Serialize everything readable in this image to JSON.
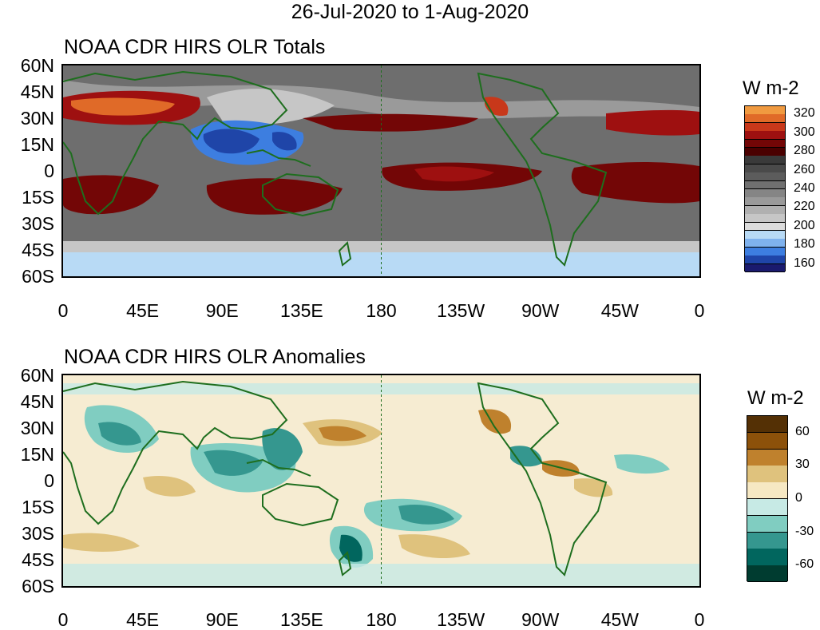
{
  "title": "26-Jul-2020 to 1-Aug-2020",
  "panels": [
    {
      "title": "NOAA CDR HIRS OLR Totals",
      "colorbar": {
        "title": "W m-2",
        "colors": [
          "#1a1a6e",
          "#1f45a8",
          "#3d7ee0",
          "#7fb2ee",
          "#b8daf5",
          "#dcdcdc",
          "#c6c6c6",
          "#b0b0b0",
          "#9a9a9a",
          "#858585",
          "#707070",
          "#5c5c5c",
          "#4a4a4a",
          "#3a3a3a",
          "#4a0000",
          "#730606",
          "#9e1010",
          "#c8381a",
          "#e06a28",
          "#f09a40"
        ],
        "labels": [
          "320",
          "300",
          "280",
          "260",
          "240",
          "220",
          "200",
          "180",
          "160"
        ]
      }
    },
    {
      "title": "NOAA CDR HIRS OLR Anomalies",
      "colorbar": {
        "title": "W m-2",
        "colors": [
          "#003c30",
          "#01665e",
          "#35978f",
          "#80cdc1",
          "#c7eae5",
          "#f6e8c3",
          "#dfc27d",
          "#bf812d",
          "#8c510a",
          "#543005"
        ],
        "labels": [
          "60",
          "30",
          "0",
          "-30",
          "-60"
        ]
      }
    }
  ],
  "map": {
    "lat_ticks": [
      "60N",
      "45N",
      "30N",
      "15N",
      "0",
      "15S",
      "30S",
      "45S",
      "60S"
    ],
    "lon_ticks": [
      "0",
      "45E",
      "90E",
      "135E",
      "180",
      "135W",
      "90W",
      "45W",
      "0"
    ],
    "lat_range": [
      -60,
      60
    ],
    "lon_range": [
      0,
      360
    ],
    "dateline_dashed": true,
    "coastline_color": "#1e6e1e",
    "background_colors": {
      "totals": "#6e6e6e",
      "anomalies": "#f6ecd2"
    }
  }
}
